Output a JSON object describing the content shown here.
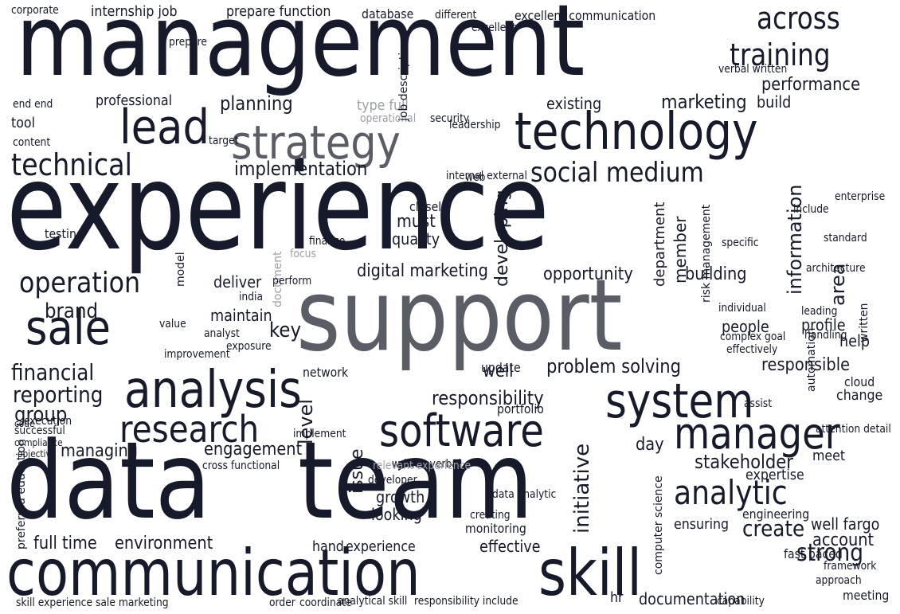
{
  "colors": {
    "background": "#ffffff",
    "ink": "#161a2a",
    "mid_gray": "#5a5d66",
    "light_gray": "#9c9fa6"
  },
  "words": [
    "management",
    "experience",
    "support",
    "data",
    "team",
    "communication",
    "skill",
    "strategy",
    "technology",
    "analysis",
    "system",
    "lead",
    "software",
    "manager",
    "research",
    "sale",
    "operation",
    "analytic",
    "social medium",
    "training",
    "across",
    "technical",
    "implementation",
    "digital marketing",
    "marketing",
    "performance",
    "planning",
    "problem solving",
    "responsibility",
    "responsible",
    "opportunity",
    "stakeholder",
    "information",
    "developing",
    "initiative",
    "strong",
    "create",
    "financial",
    "reporting",
    "brand",
    "group",
    "managing",
    "engagement",
    "environment",
    "full time",
    "documentation",
    "build",
    "existing",
    "quality",
    "must",
    "deliver",
    "building",
    "member",
    "key",
    "maintain",
    "value",
    "people",
    "profile",
    "help",
    "area",
    "change",
    "cloud",
    "account",
    "meet",
    "issue",
    "level",
    "well",
    "day",
    "portfolio",
    "network",
    "update",
    "effective",
    "experience",
    "hand",
    "fast paced",
    "well fargo",
    "ensuring",
    "engineering",
    "expertise",
    "looking",
    "growth",
    "monitoring",
    "creating",
    "developer",
    "internship job",
    "prepare function",
    "database",
    "different",
    "excellent communication",
    "corporate",
    "testing",
    "improvement",
    "exposure",
    "model",
    "tool",
    "end end",
    "content",
    "professional",
    "target",
    "security",
    "type full",
    "operational",
    "closely",
    "web",
    "execution",
    "code",
    "successful",
    "compliance",
    "objective",
    "include",
    "specific",
    "standard",
    "enterprise",
    "written",
    "risk management",
    "leadership",
    "department",
    "coordinate",
    "order",
    "analytical skill",
    "responsibility include",
    "skill experience sale marketing",
    "preferred education",
    "cross functional",
    "implement",
    "hr",
    "written verbal",
    "data analytic",
    "computer science",
    "capability",
    "approach",
    "meeting",
    "framework",
    "effectively",
    "architecture",
    "individual",
    "goal",
    "automation",
    "attention detail",
    "leading",
    "complex",
    "handling",
    "india",
    "relevant experience",
    "focus",
    "finance",
    "document",
    "analyst",
    "perform",
    "job description",
    "excellent",
    "prepare",
    "verbal written",
    "internal external",
    "assist"
  ]
}
